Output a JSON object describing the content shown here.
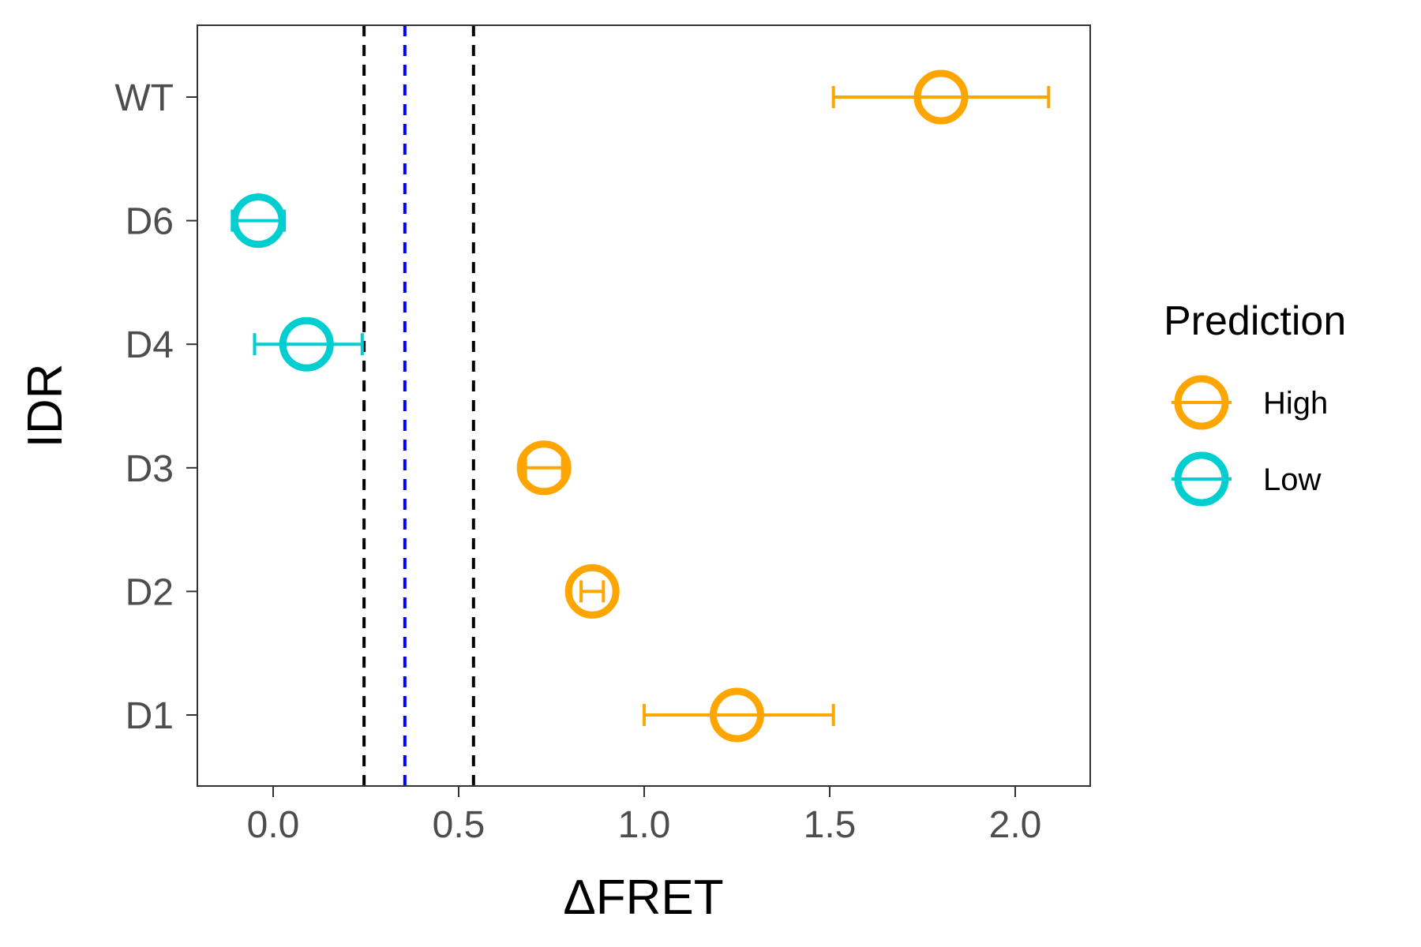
{
  "chart_data": {
    "type": "scatter",
    "subtype": "point-with-horizontal-error-bars",
    "title": "",
    "xlabel": "ΔFRET",
    "ylabel": "IDR",
    "xlim": [
      -0.2,
      2.2
    ],
    "x_ticks": [
      0.0,
      0.5,
      1.0,
      1.5,
      2.0
    ],
    "x_tick_labels": [
      "0.0",
      "0.5",
      "1.0",
      "1.5",
      "2.0"
    ],
    "categories": [
      "D1",
      "D2",
      "D3",
      "D4",
      "D6",
      "WT"
    ],
    "grid": false,
    "legend": {
      "title": "Prediction",
      "placement": "right",
      "entries": [
        {
          "label": "High",
          "color": "#FFA500"
        },
        {
          "label": "Low",
          "color": "#00CED1"
        }
      ]
    },
    "points": [
      {
        "category": "WT",
        "x": 1.8,
        "xmin": 1.51,
        "xmax": 2.09,
        "prediction": "High"
      },
      {
        "category": "D6",
        "x": -0.04,
        "xmin": -0.11,
        "xmax": 0.03,
        "prediction": "Low"
      },
      {
        "category": "D4",
        "x": 0.09,
        "xmin": -0.05,
        "xmax": 0.24,
        "prediction": "Low"
      },
      {
        "category": "D3",
        "x": 0.73,
        "xmin": 0.68,
        "xmax": 0.78,
        "prediction": "High"
      },
      {
        "category": "D2",
        "x": 0.86,
        "xmin": 0.83,
        "xmax": 0.89,
        "prediction": "High"
      },
      {
        "category": "D1",
        "x": 1.25,
        "xmin": 1.0,
        "xmax": 1.51,
        "prediction": "High"
      }
    ],
    "reference_lines": [
      {
        "x": 0.245,
        "color": "#000000",
        "style": "dashed"
      },
      {
        "x": 0.355,
        "color": "#0000FF",
        "style": "dashed"
      },
      {
        "x": 0.54,
        "color": "#000000",
        "style": "dashed"
      }
    ]
  }
}
